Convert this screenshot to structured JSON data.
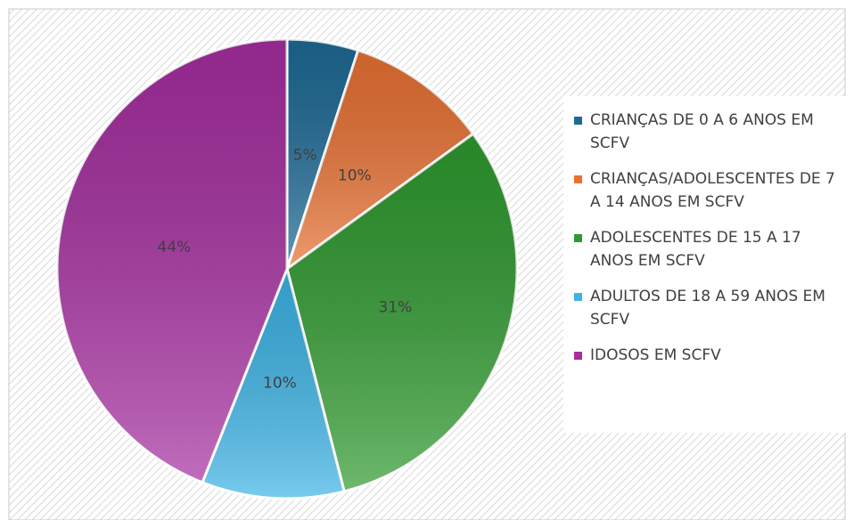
{
  "chart_data": {
    "type": "pie",
    "categories": [
      "CRIANÇAS DE 0 A 6 ANOS EM SCFV",
      "CRIANÇAS/ADOLESCENTES DE 7 A 14 ANOS EM SCFV",
      "ADOLESCENTES DE 15 A 17 ANOS EM SCFV",
      "ADULTOS DE 18 A 59 ANOS EM SCFV",
      "IDOSOS EM SCFV"
    ],
    "values": [
      5,
      10,
      31,
      10,
      44
    ],
    "value_labels": [
      "5%",
      "10%",
      "31%",
      "10%",
      "44%"
    ],
    "colors": [
      "#1d6a96",
      "#e97132",
      "#2e9a2e",
      "#3cb4e6",
      "#a62ea0"
    ],
    "legend": "right"
  }
}
